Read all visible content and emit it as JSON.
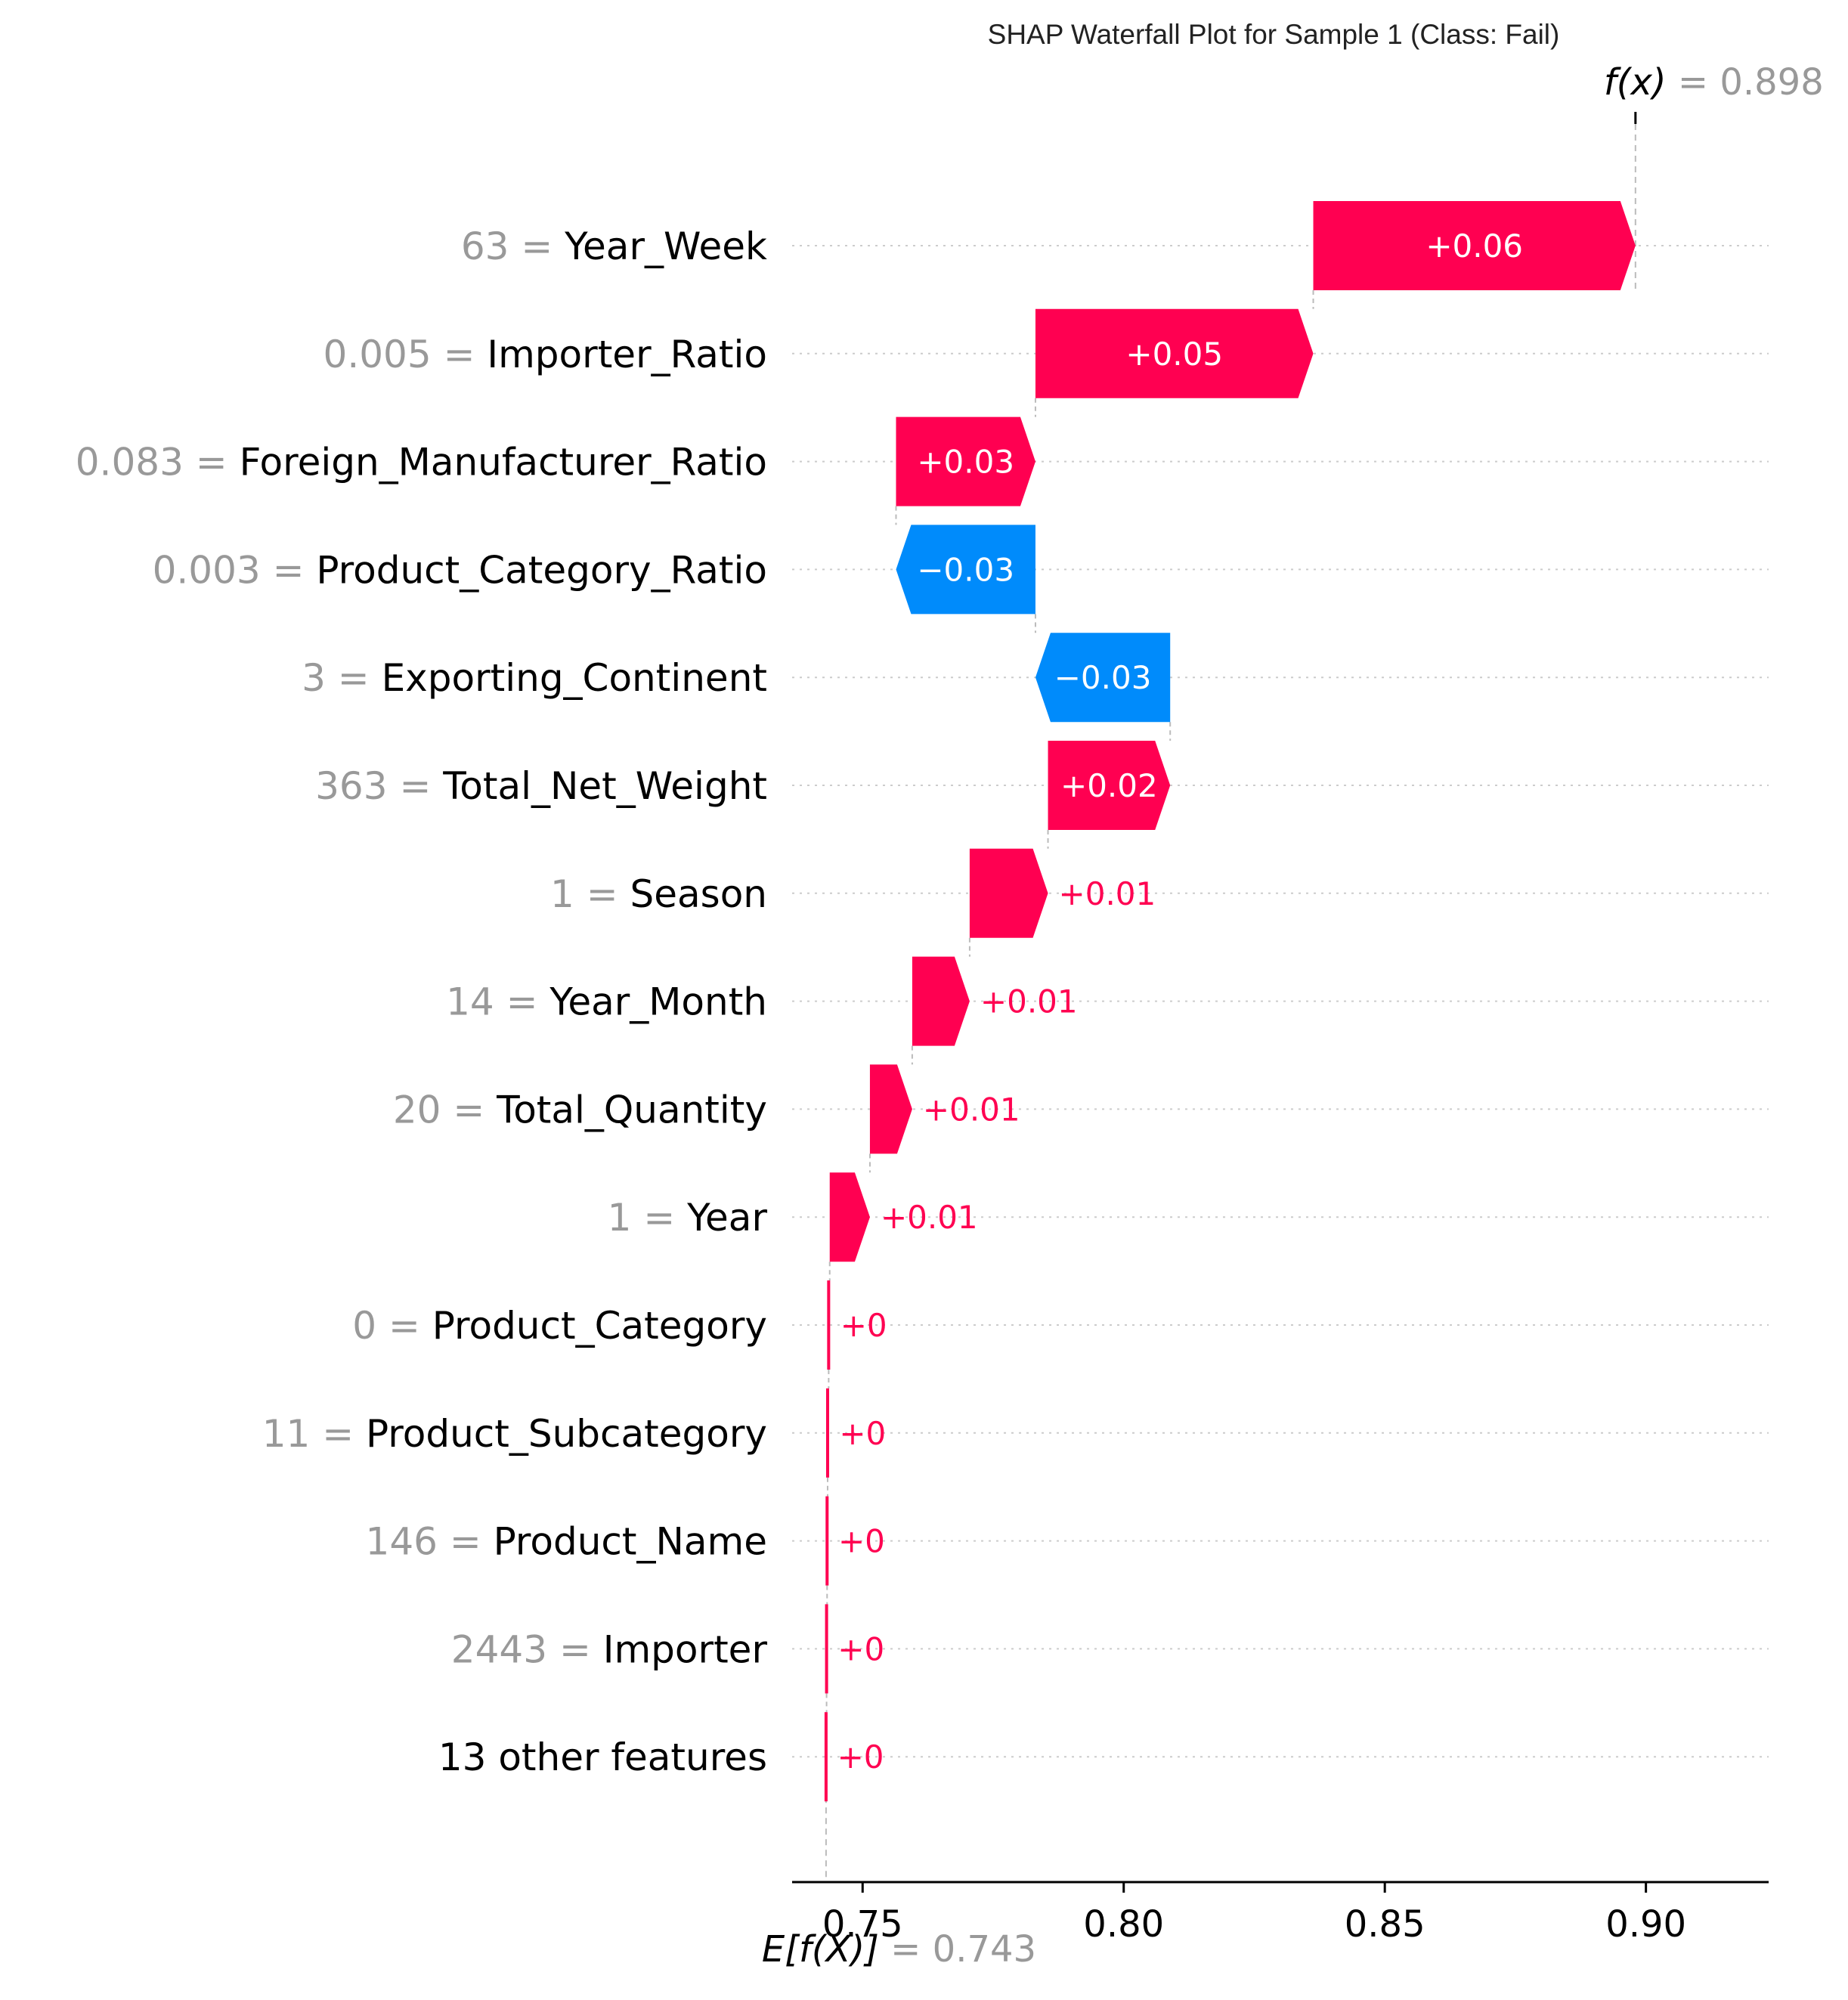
{
  "chart_data": {
    "type": "waterfall",
    "title": "SHAP Waterfall Plot for Sample 1 (Class: Fail)",
    "base_value": 0.743,
    "base_label": "E[f(X)]",
    "base_value_text": "= 0.743",
    "output_value": 0.898,
    "output_label": "f(x)",
    "output_value_text": "= 0.898",
    "xlim": [
      0.7365,
      0.9235
    ],
    "x_ticks": [
      {
        "value": 0.75,
        "label": "0.75"
      },
      {
        "value": 0.8,
        "label": "0.80"
      },
      {
        "value": 0.85,
        "label": "0.85"
      },
      {
        "value": 0.9,
        "label": "0.90"
      }
    ],
    "features": [
      {
        "feature_value": "63",
        "name": "Year_Week",
        "start": 0.8363,
        "end": 0.898,
        "label": "+0.06"
      },
      {
        "feature_value": "0.005",
        "name": "Importer_Ratio",
        "start": 0.7831,
        "end": 0.8363,
        "label": "+0.05"
      },
      {
        "feature_value": "0.083",
        "name": "Foreign_Manufacturer_Ratio",
        "start": 0.7564,
        "end": 0.7831,
        "label": "+0.03"
      },
      {
        "feature_value": "0.003",
        "name": "Product_Category_Ratio",
        "start": 0.7831,
        "end": 0.7564,
        "label": "−0.03"
      },
      {
        "feature_value": "3",
        "name": "Exporting_Continent",
        "start": 0.8089,
        "end": 0.7831,
        "label": "−0.03"
      },
      {
        "feature_value": "363",
        "name": "Total_Net_Weight",
        "start": 0.7855,
        "end": 0.8089,
        "label": "+0.02"
      },
      {
        "feature_value": "1",
        "name": "Season",
        "start": 0.7705,
        "end": 0.7855,
        "label": "+0.01"
      },
      {
        "feature_value": "14",
        "name": "Year_Month",
        "start": 0.7595,
        "end": 0.7705,
        "label": "+0.01"
      },
      {
        "feature_value": "20",
        "name": "Total_Quantity",
        "start": 0.7514,
        "end": 0.7595,
        "label": "+0.01"
      },
      {
        "feature_value": "1",
        "name": "Year",
        "start": 0.7437,
        "end": 0.7514,
        "label": "+0.01"
      },
      {
        "feature_value": "0",
        "name": "Product_Category",
        "start": 0.7435,
        "end": 0.7437,
        "label": "+0"
      },
      {
        "feature_value": "11",
        "name": "Product_Subcategory",
        "start": 0.7433,
        "end": 0.7435,
        "label": "+0"
      },
      {
        "feature_value": "146",
        "name": "Product_Name",
        "start": 0.7432,
        "end": 0.7433,
        "label": "+0"
      },
      {
        "feature_value": "2443",
        "name": "Importer",
        "start": 0.7431,
        "end": 0.7432,
        "label": "+0"
      },
      {
        "feature_value": "",
        "name": "13 other features",
        "start": 0.743,
        "end": 0.7431,
        "label": "+0"
      }
    ],
    "colors": {
      "positive": "#ff0051",
      "negative": "#008bfb",
      "feature_value_text": "#999999",
      "axis": "#000000",
      "gridline": "#cccccc"
    }
  }
}
